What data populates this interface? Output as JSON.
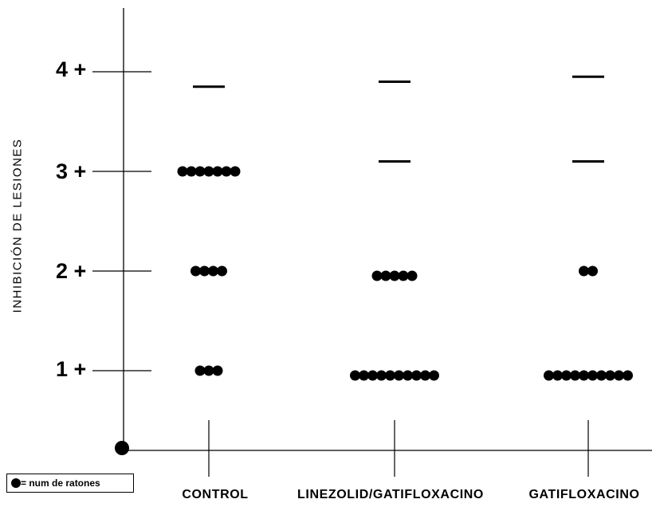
{
  "chart_data": {
    "type": "scatter",
    "ylabel": "INHIBICIÓN DE LESIONES",
    "xlabel": "",
    "y_ticks": [
      "1 +",
      "2 +",
      "3 +",
      "4 +"
    ],
    "ylim": [
      0,
      4.5
    ],
    "categories": [
      "CONTROL",
      "LINEZOLID/GATIFLOXACINO",
      "GATIFLOXACINO"
    ],
    "legend": {
      "label": "= num de ratones",
      "position": "bottom-left"
    },
    "series": [
      {
        "category": "CONTROL",
        "points": [
          {
            "y": 1,
            "count": 3
          },
          {
            "y": 2,
            "count": 4
          },
          {
            "y": 3,
            "count": 7
          }
        ],
        "mean": 3.85
      },
      {
        "category": "LINEZOLID/GATIFLOXACINO",
        "points": [
          {
            "y": 1,
            "count": 10
          },
          {
            "y": 2,
            "count": 5
          }
        ],
        "mean": 3.9,
        "mean_secondary": 3.1
      },
      {
        "category": "GATIFLOXACINO",
        "points": [
          {
            "y": 1,
            "count": 10
          },
          {
            "y": 2,
            "count": 2
          }
        ],
        "mean": 3.95,
        "mean_secondary": 3.1
      }
    ]
  }
}
